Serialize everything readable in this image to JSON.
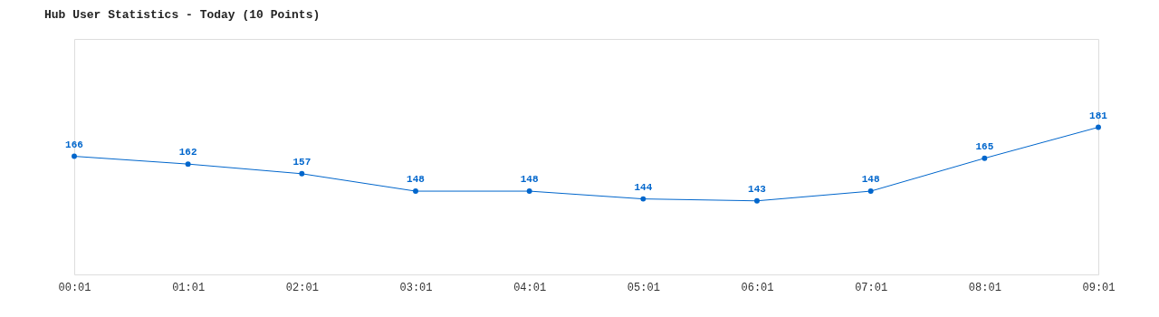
{
  "chart_data": {
    "type": "line",
    "title": "Hub User Statistics - Today (10 Points)",
    "categories": [
      "00:01",
      "01:01",
      "02:01",
      "03:01",
      "04:01",
      "05:01",
      "06:01",
      "07:01",
      "08:01",
      "09:01"
    ],
    "series": [
      {
        "color": "#0066cc",
        "values": [
          166,
          162,
          157,
          148,
          148,
          144,
          143,
          148,
          165,
          181
        ]
      }
    ],
    "data_labels": true,
    "marker": "circle",
    "grid": false,
    "legend": false
  }
}
